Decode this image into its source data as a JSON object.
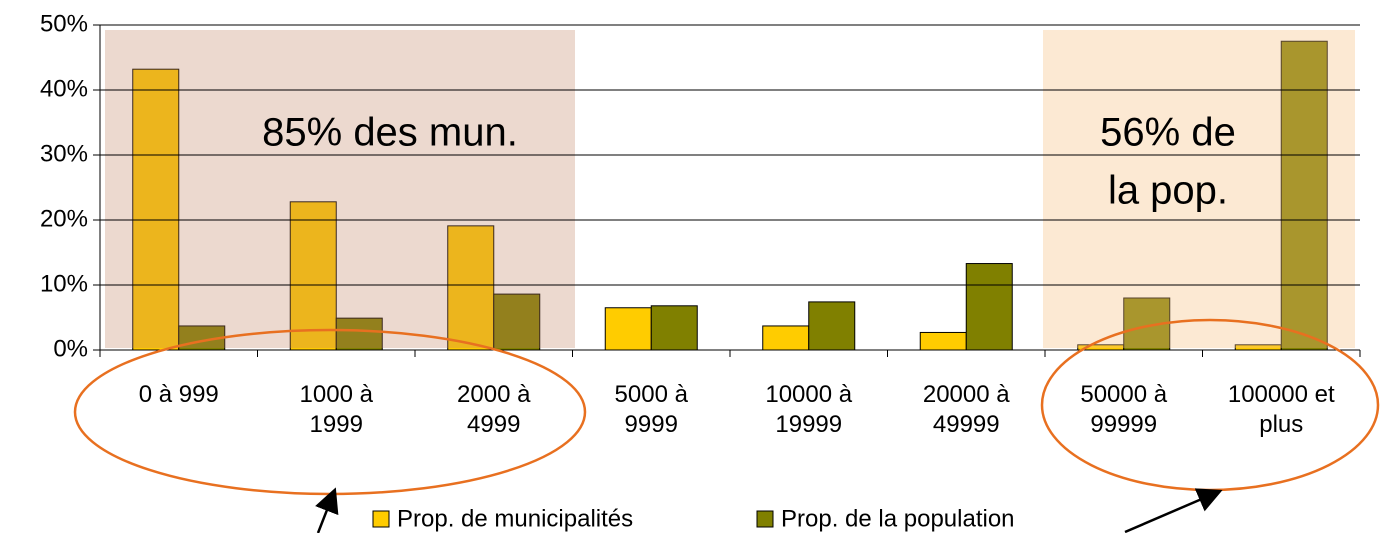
{
  "chart_data": {
    "type": "bar",
    "categories": [
      "0 à 999",
      "1000 à 1999",
      "2000 à 4999",
      "5000 à 9999",
      "10000 à 19999",
      "20000 à 49999",
      "50000 à 99999",
      "100000 et plus"
    ],
    "series": [
      {
        "name": "Prop. de municipalités",
        "color": "#FFCC00",
        "values": [
          43.2,
          22.8,
          19.1,
          6.5,
          3.7,
          2.7,
          0.8,
          0.8
        ]
      },
      {
        "name": "Prop. de la population",
        "color": "#808000",
        "values": [
          3.7,
          4.9,
          8.6,
          6.8,
          7.4,
          13.3,
          8.0,
          47.5
        ]
      }
    ],
    "ylim": [
      0,
      50
    ],
    "yticks": [
      {
        "value": 0,
        "label": "0%"
      },
      {
        "value": 10,
        "label": "10%"
      },
      {
        "value": 20,
        "label": "20%"
      },
      {
        "value": 30,
        "label": "30%"
      },
      {
        "value": 40,
        "label": "40%"
      },
      {
        "value": 50,
        "label": "50%"
      }
    ],
    "grid": true,
    "legend": "bottom",
    "annotations": [
      "85% des mun.",
      "56% de",
      "la pop."
    ]
  }
}
